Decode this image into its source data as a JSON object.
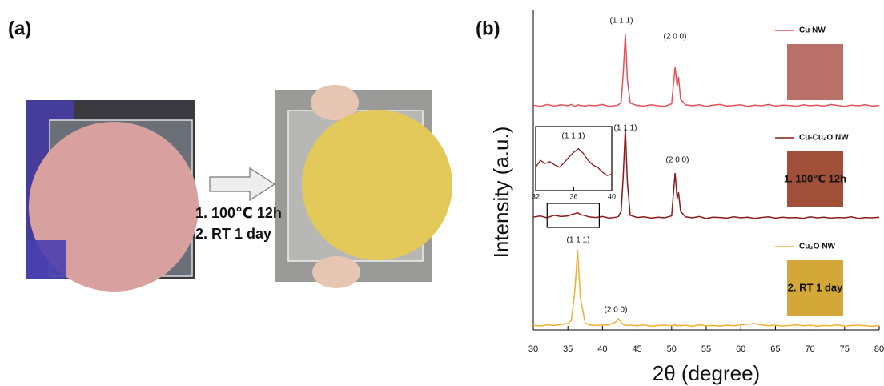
{
  "panel_a": {
    "label": "(a)",
    "steps": [
      "1. 100℃ 12h",
      "2. RT 1 day"
    ]
  },
  "chart_data": {
    "type": "line",
    "panel_label": "(b)",
    "x_label": "2θ (degree)",
    "y_label": "Intensity (a.u.)",
    "xlim": [
      30,
      80
    ],
    "xticks": [
      30,
      35,
      40,
      45,
      50,
      55,
      60,
      65,
      70,
      75,
      80
    ],
    "ylim": [
      0,
      100
    ],
    "x": [
      30,
      31,
      32,
      33,
      34,
      35,
      35.5,
      36,
      36.4,
      36.8,
      37.5,
      38,
      39,
      40,
      41,
      42,
      42.3,
      42.7,
      43,
      43.3,
      43.6,
      44,
      45,
      46,
      47,
      48,
      49,
      50,
      50.5,
      50.8,
      51,
      51.3,
      52,
      53,
      54,
      55,
      56,
      57,
      58,
      59,
      60,
      61,
      62,
      63,
      64,
      65,
      66,
      67,
      68,
      69,
      70,
      71,
      72,
      73,
      74,
      75,
      76,
      77,
      78,
      79,
      80
    ],
    "series": [
      {
        "name": "Cu NW",
        "color": "#e8505b",
        "swatch_color": "#b87068",
        "values": [
          70.2,
          69.8,
          70.4,
          69.9,
          70.3,
          70.0,
          70.4,
          69.8,
          70.3,
          70.1,
          69.9,
          70.2,
          70.0,
          70.4,
          69.8,
          70.1,
          70.3,
          71.0,
          80,
          92.5,
          78,
          70.8,
          70.1,
          69.9,
          70.3,
          70.0,
          69.8,
          70.6,
          82,
          76,
          79,
          72,
          70.3,
          70.0,
          70.3,
          69.8,
          70.2,
          70.4,
          69.9,
          70.1,
          70.3,
          69.8,
          70.2,
          70.0,
          70.4,
          69.9,
          70.2,
          70.1,
          69.8,
          70.3,
          70.0,
          70.2,
          69.9,
          70.4,
          70.1,
          69.8,
          70.2,
          70.0,
          70.3,
          69.9,
          70.1
        ],
        "peak_labels": [
          "(1 1 1)",
          "(2 0 0)"
        ]
      },
      {
        "name": "Cu-Cu₂O NW",
        "color": "#8b1a1a",
        "swatch_color": "#a05038",
        "swatch_label": "1. 100℃ 12h",
        "values": [
          35.2,
          35.6,
          35.0,
          35.8,
          35.4,
          35.6,
          36.0,
          36.3,
          36.6,
          36.0,
          35.7,
          35.3,
          35.1,
          35.4,
          34.9,
          35.2,
          35.4,
          37,
          48,
          63,
          46,
          35.8,
          35.1,
          35.3,
          34.9,
          35.2,
          35.0,
          35.6,
          49,
          41,
          43,
          37,
          35.3,
          35.0,
          35.4,
          34.8,
          35.2,
          35.1,
          34.9,
          35.3,
          35.0,
          35.2,
          34.8,
          35.1,
          35.3,
          34.9,
          35.2,
          35.0,
          35.1,
          34.8,
          35.3,
          35.0,
          35.2,
          34.9,
          35.1,
          35.0,
          35.3,
          34.8,
          35.1,
          35.0,
          35.2
        ],
        "peak_labels": [
          "(1 1 1)",
          "(2 0 0)"
        ]
      },
      {
        "name": "Cu₂O NW",
        "color": "#f0b030",
        "swatch_color": "#d4a838",
        "swatch_label": "2. RT 1 day",
        "values": [
          1.5,
          1.2,
          1.6,
          1.4,
          1.7,
          2.0,
          3,
          12,
          25,
          10,
          2.2,
          1.6,
          1.4,
          1.5,
          1.6,
          2.6,
          3.5,
          2.4,
          1.7,
          1.5,
          1.4,
          1.5,
          1.3,
          1.6,
          1.2,
          1.4,
          1.5,
          1.3,
          1.6,
          1.2,
          1.4,
          1.3,
          1.5,
          1.2,
          1.6,
          1.3,
          1.4,
          1.2,
          1.5,
          1.3,
          1.6,
          1.8,
          2.0,
          1.6,
          1.3,
          1.5,
          1.2,
          1.4,
          1.6,
          1.3,
          1.5,
          1.2,
          1.4,
          1.3,
          1.6,
          1.2,
          1.4,
          1.5,
          1.3,
          1.2,
          1.4
        ],
        "peak_labels": [
          "(1 1 1)",
          "(2 0 0)"
        ]
      }
    ],
    "inset": {
      "label": "(1 1 1)",
      "xlim": [
        32,
        40
      ],
      "xticks": [
        32,
        36,
        40
      ],
      "ylim": [
        0,
        100
      ],
      "x": [
        32,
        32.5,
        33,
        33.5,
        34,
        34.5,
        35,
        35.5,
        36,
        36.5,
        37,
        37.5,
        38,
        38.5,
        39,
        39.5,
        40
      ],
      "values": [
        40,
        55,
        48,
        52,
        45,
        40,
        50,
        62,
        72,
        80,
        70,
        55,
        45,
        40,
        30,
        22,
        25
      ]
    }
  }
}
